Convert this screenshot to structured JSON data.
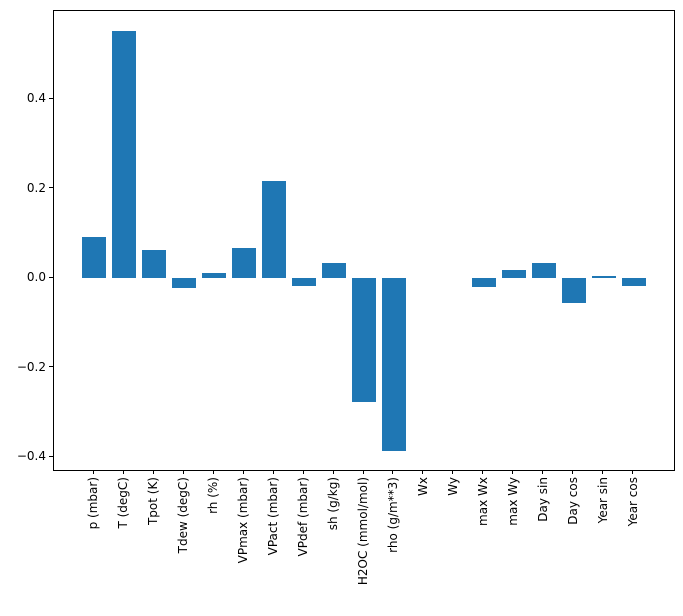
{
  "figure": {
    "background_color": "#ffffff",
    "title": ""
  },
  "chart_data": {
    "type": "bar",
    "title": "",
    "xlabel": "",
    "ylabel": "",
    "categories": [
      "p (mbar)",
      "T (degC)",
      "Tpot (K)",
      "Tdew (degC)",
      "rh (%)",
      "VPmax (mbar)",
      "VPact (mbar)",
      "VPdef (mbar)",
      "sh (g/kg)",
      "H2OC (mmol/mol)",
      "rho (g/m**3)",
      "Wx",
      "Wy",
      "max Wx",
      "max Wy",
      "Day sin",
      "Day cos",
      "Year sin",
      "Year cos"
    ],
    "values": [
      0.092,
      0.553,
      0.063,
      -0.022,
      0.012,
      0.067,
      0.218,
      -0.018,
      0.033,
      -0.277,
      -0.386,
      0.0,
      0.0,
      -0.02,
      0.017,
      0.034,
      -0.055,
      0.004,
      -0.018
    ],
    "yticks": [
      -0.4,
      -0.2,
      0.0,
      0.2,
      0.4
    ],
    "ytick_labels": [
      "−0.4",
      "−0.2",
      "0.0",
      "0.2",
      "0.4"
    ],
    "ylim": [
      -0.429,
      0.597
    ],
    "xlim": [
      -1.34,
      19.34
    ],
    "bar_width": 0.8,
    "bar_color": "#1f77b4",
    "axes_color": "#000000",
    "grid": false,
    "legend_position": "none",
    "xtick_rotation_deg": 90
  }
}
